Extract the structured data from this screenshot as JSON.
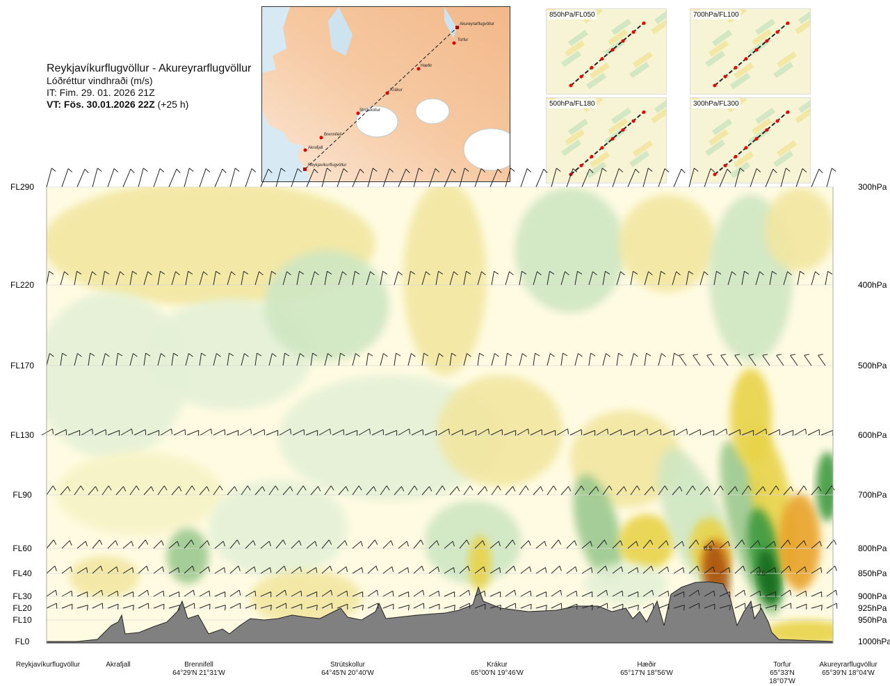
{
  "header": {
    "route": "Reykjavíkurflugvöllur - Akureyrarflugvöllur",
    "parameter": "Lóðréttur vindhraði (m/s)",
    "init_time": "IT: Fim. 29. 01. 2026 21Z",
    "valid_prefix": "VT: Fös. 30.01.2026 22Z",
    "valid_suffix": "(+25 h)"
  },
  "map": {
    "points": [
      "Akureyrarflugvöllur",
      "Torfur",
      "Hæðir",
      "Krákur",
      "Strútskollur",
      "Brennifell",
      "Akrafjall",
      "Reykjavíkurflugvöllur"
    ]
  },
  "mini_maps": [
    {
      "label": "850hPa/FL050"
    },
    {
      "label": "700hPa/FL100"
    },
    {
      "label": "500hPa/FL180"
    },
    {
      "label": "300hPa/FL300"
    }
  ],
  "chart_data": {
    "type": "heatmap",
    "title": "Lóðréttur vindhraði (m/s)",
    "left_axis_labels": [
      "FL290",
      "FL220",
      "FL170",
      "FL130",
      "FL90",
      "FL60",
      "FL40",
      "FL30",
      "FL20",
      "FL10",
      "FL0"
    ],
    "right_axis_labels": [
      "300hPa",
      "400hPa",
      "500hPa",
      "600hPa",
      "700hPa",
      "800hPa",
      "850hPa",
      "900hPa",
      "925hPa",
      "950hPa",
      "1000hPa"
    ],
    "pressure_levels_hpa": [
      300,
      400,
      500,
      600,
      700,
      800,
      850,
      900,
      925,
      950,
      1000
    ],
    "contour_labels": [
      "0.5",
      "0.5"
    ],
    "colors": {
      "sink_weak": "#f7f3c6",
      "sink_mod": "#f2e6a0",
      "sink_strong": "#e8d34a",
      "sink_very": "#e8a32a",
      "sink_max": "#a8520e",
      "rise_weak": "#e4f1d6",
      "rise_mod": "#cfe6c2",
      "rise_strong": "#9cc98f",
      "rise_very": "#3e9a3f",
      "rise_max": "#166a1e",
      "terrain": "#808080"
    }
  },
  "locations": [
    {
      "name": "Reykjavíkurflugvöllur",
      "coords": ""
    },
    {
      "name": "Akrafjall",
      "coords": ""
    },
    {
      "name": "Brennifell",
      "coords": "64°29'N 21°31'W"
    },
    {
      "name": "Strútskollur",
      "coords": "64°45'N 20°40'W"
    },
    {
      "name": "Krákur",
      "coords": "65°00'N 19°46'W"
    },
    {
      "name": "Hæðir",
      "coords": "65°17'N 18°56'W"
    },
    {
      "name": "Torfur",
      "coords": "65°33'N 18°07'W"
    },
    {
      "name": "Akureyrarflugvöllur",
      "coords": "65°39'N 18°04'W"
    }
  ]
}
